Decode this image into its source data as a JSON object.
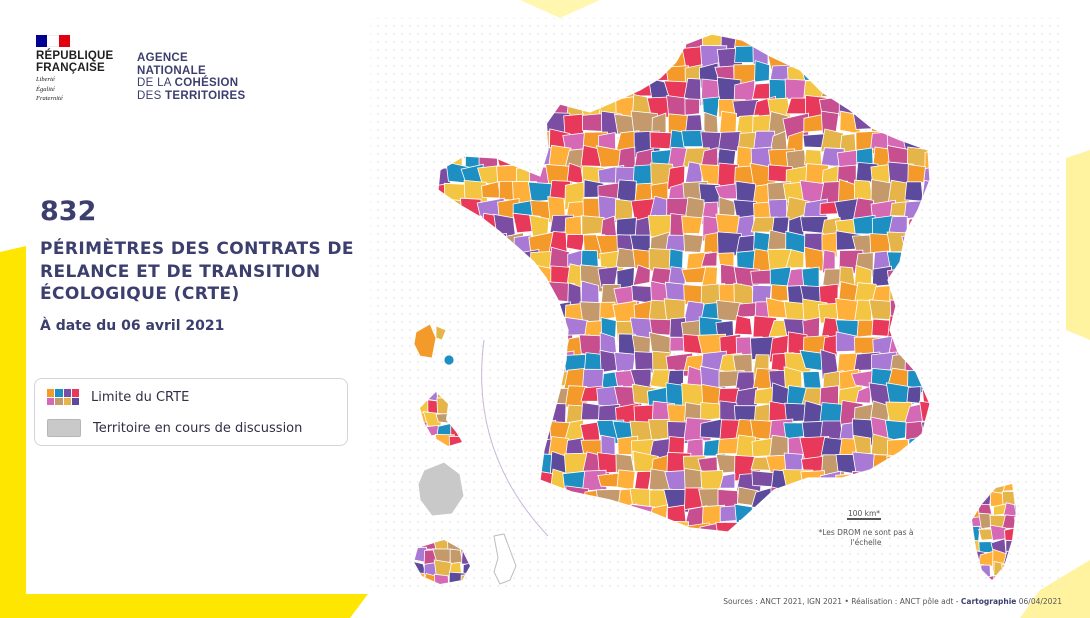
{
  "header": {
    "republic": [
      "RÉPUBLIQUE",
      "FRANÇAISE"
    ],
    "motto": [
      "Liberté",
      "Égalité",
      "Fraternité"
    ],
    "agency": [
      "AGENCE",
      "NATIONALE",
      "DE LA",
      "COHÉSION",
      "DES",
      "TERRITOIRES"
    ]
  },
  "summary": {
    "count": "832",
    "title": "PÉRIMÈTRES DES CONTRATS DE RELANCE ET DE TRANSITION ÉCOLOGIQUE (CRTE)",
    "date": "À date du 06 avril 2021"
  },
  "legend": {
    "items": [
      {
        "label": "Limite du CRTE",
        "icon": "multicolor-swatch-icon"
      },
      {
        "label": "Territoire en cours de discussion",
        "icon": "grey-swatch-icon"
      }
    ]
  },
  "map": {
    "scale_label": "100 km*",
    "note": "*Les DROM ne sont pas à l'échelle",
    "palette": [
      "#e8395a",
      "#7b4ea3",
      "#f39a2b",
      "#1e8fc2",
      "#c49a6c",
      "#d669b6",
      "#a87ad6",
      "#e6b54a",
      "#5c4a9c",
      "#f4c542",
      "#c74e8f",
      "#ffb03a"
    ],
    "discussion_color": "#c9c9c9",
    "accent_yellow": "#ffe600"
  },
  "footer": {
    "sources_label": "Sources :",
    "sources": "ANCT 2021, IGN 2021",
    "realisation_label": "Réalisation :",
    "realisation": "ANCT pôle adt",
    "carto_label": "Cartographie",
    "carto_date": "06/04/2021"
  }
}
